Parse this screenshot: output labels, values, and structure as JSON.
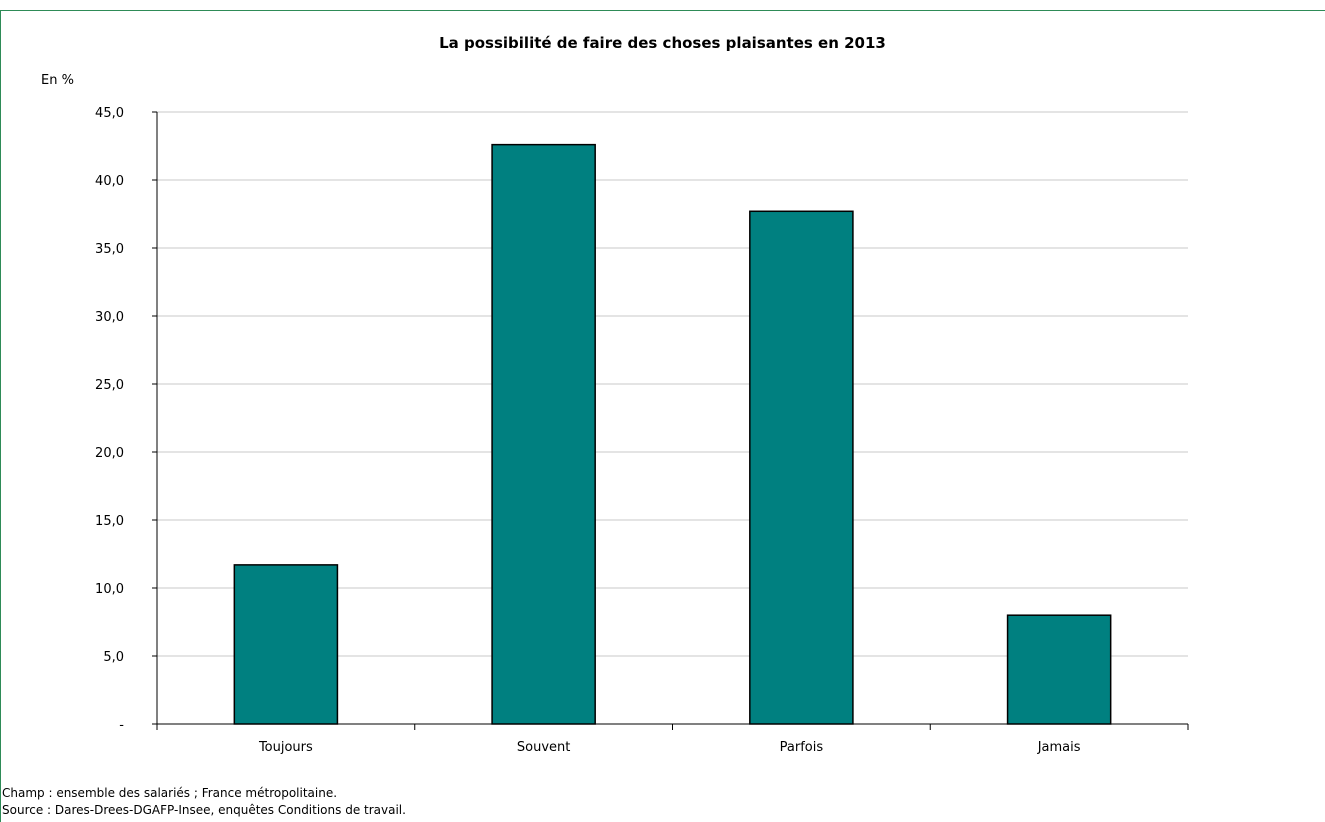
{
  "chart_data": {
    "type": "bar",
    "title": "La possibilité de faire des choses plaisantes en 2013",
    "ylabel": "En %",
    "xlabel": "",
    "categories": [
      "Toujours",
      "Souvent",
      "Parfois",
      "Jamais"
    ],
    "values": [
      11.7,
      42.6,
      37.7,
      8.0
    ],
    "ylim": [
      0,
      45
    ],
    "yticks": [
      0,
      5,
      10,
      15,
      20,
      25,
      30,
      35,
      40,
      45
    ],
    "ytick_labels": [
      "-",
      "5,0",
      "10,0",
      "15,0",
      "20,0",
      "25,0",
      "30,0",
      "35,0",
      "40,0",
      "45,0"
    ],
    "grid": true,
    "bar_color": "#008080"
  },
  "notes": {
    "champ": "Champ : ensemble des salariés ; France métropolitaine.",
    "source": "Source : Dares-Drees-DGAFP-Insee, enquêtes Conditions de travail."
  }
}
